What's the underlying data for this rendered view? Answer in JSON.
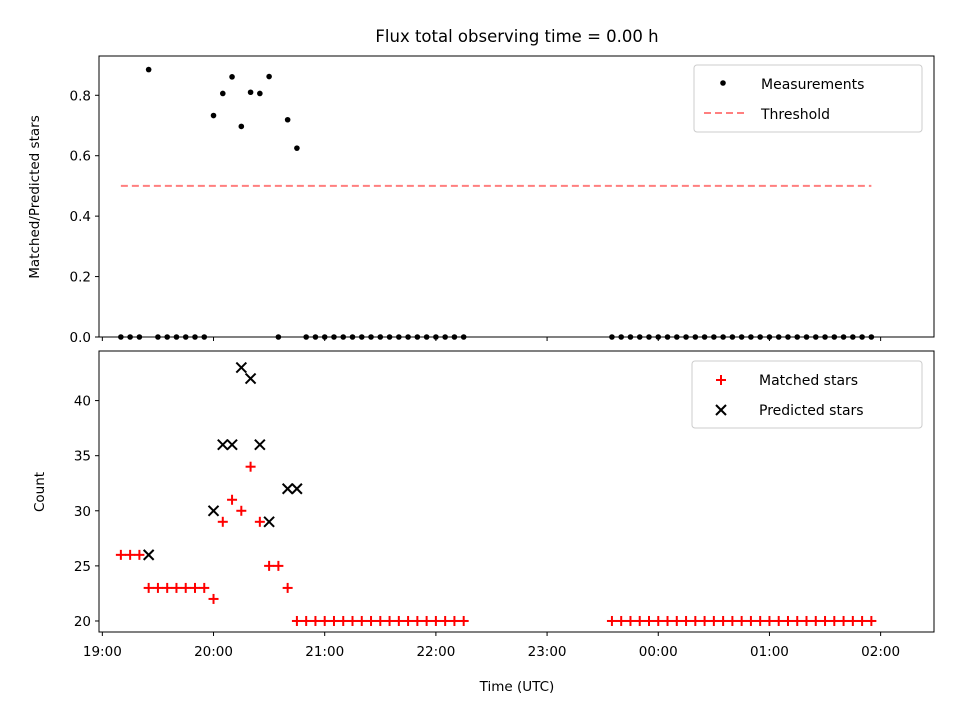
{
  "chart_data": [
    {
      "type": "scatter",
      "title": "Flux total observing time = 0.00 h",
      "ylabel": "Matched/Predicted stars",
      "ylim": [
        0.0,
        0.93
      ],
      "yticks": [
        "0.0",
        "0.2",
        "0.4",
        "0.6",
        "0.8"
      ],
      "xlim_hours": [
        18.97,
        26.48
      ],
      "legend": {
        "placement": "upper right",
        "entries": [
          {
            "name": "Measurements",
            "marker": "dot",
            "color": "#000000"
          },
          {
            "name": "Threshold",
            "marker": "dashed-line",
            "color": "#ff7f7f"
          }
        ]
      },
      "threshold": {
        "name": "Threshold",
        "value": 0.5,
        "x_start": "19:10",
        "x_end": "01:55",
        "color": "#ff7f7f"
      },
      "series": [
        {
          "name": "Measurements",
          "color": "#000000",
          "points": [
            [
              "19:10",
              0.0
            ],
            [
              "19:15",
              0.0
            ],
            [
              "19:20",
              0.0
            ],
            [
              "19:25",
              0.885
            ],
            [
              "19:30",
              0.0
            ],
            [
              "19:35",
              0.0
            ],
            [
              "19:40",
              0.0
            ],
            [
              "19:45",
              0.0
            ],
            [
              "19:50",
              0.0
            ],
            [
              "19:55",
              0.0
            ],
            [
              "20:00",
              0.733
            ],
            [
              "20:05",
              0.806
            ],
            [
              "20:10",
              0.861
            ],
            [
              "20:15",
              0.697
            ],
            [
              "20:20",
              0.81
            ],
            [
              "20:25",
              0.806
            ],
            [
              "20:30",
              0.862
            ],
            [
              "20:35",
              0.0
            ],
            [
              "20:40",
              0.719
            ],
            [
              "20:45",
              0.625
            ],
            [
              "20:50",
              0.0
            ],
            [
              "20:55",
              0.0
            ],
            [
              "21:00",
              0.0
            ],
            [
              "21:05",
              0.0
            ],
            [
              "21:10",
              0.0
            ],
            [
              "21:15",
              0.0
            ],
            [
              "21:20",
              0.0
            ],
            [
              "21:25",
              0.0
            ],
            [
              "21:30",
              0.0
            ],
            [
              "21:35",
              0.0
            ],
            [
              "21:40",
              0.0
            ],
            [
              "21:45",
              0.0
            ],
            [
              "21:50",
              0.0
            ],
            [
              "21:55",
              0.0
            ],
            [
              "22:00",
              0.0
            ],
            [
              "22:05",
              0.0
            ],
            [
              "22:10",
              0.0
            ],
            [
              "22:15",
              0.0
            ],
            [
              "23:35",
              0.0
            ],
            [
              "23:40",
              0.0
            ],
            [
              "23:45",
              0.0
            ],
            [
              "23:50",
              0.0
            ],
            [
              "23:55",
              0.0
            ],
            [
              "00:00",
              0.0
            ],
            [
              "00:05",
              0.0
            ],
            [
              "00:10",
              0.0
            ],
            [
              "00:15",
              0.0
            ],
            [
              "00:20",
              0.0
            ],
            [
              "00:25",
              0.0
            ],
            [
              "00:30",
              0.0
            ],
            [
              "00:35",
              0.0
            ],
            [
              "00:40",
              0.0
            ],
            [
              "00:45",
              0.0
            ],
            [
              "00:50",
              0.0
            ],
            [
              "00:55",
              0.0
            ],
            [
              "01:00",
              0.0
            ],
            [
              "01:05",
              0.0
            ],
            [
              "01:10",
              0.0
            ],
            [
              "01:15",
              0.0
            ],
            [
              "01:20",
              0.0
            ],
            [
              "01:25",
              0.0
            ],
            [
              "01:30",
              0.0
            ],
            [
              "01:35",
              0.0
            ],
            [
              "01:40",
              0.0
            ],
            [
              "01:45",
              0.0
            ],
            [
              "01:50",
              0.0
            ],
            [
              "01:55",
              0.0
            ]
          ]
        }
      ]
    },
    {
      "type": "scatter",
      "xlabel": "Time (UTC)",
      "ylabel": "Count",
      "ylim": [
        19,
        44.5
      ],
      "yticks": [
        "20",
        "25",
        "30",
        "35",
        "40"
      ],
      "xlim_hours": [
        18.97,
        26.48
      ],
      "xticks": [
        "19:00",
        "20:00",
        "21:00",
        "22:00",
        "23:00",
        "00:00",
        "01:00",
        "02:00"
      ],
      "legend": {
        "placement": "upper right",
        "entries": [
          {
            "name": "Matched stars",
            "marker": "plus",
            "color": "#ff0000"
          },
          {
            "name": "Predicted stars",
            "marker": "x",
            "color": "#000000"
          }
        ]
      },
      "series": [
        {
          "name": "Matched stars",
          "color": "#ff0000",
          "points": [
            [
              "19:10",
              26
            ],
            [
              "19:15",
              26
            ],
            [
              "19:20",
              26
            ],
            [
              "19:25",
              23
            ],
            [
              "19:30",
              23
            ],
            [
              "19:35",
              23
            ],
            [
              "19:40",
              23
            ],
            [
              "19:45",
              23
            ],
            [
              "19:50",
              23
            ],
            [
              "19:55",
              23
            ],
            [
              "20:00",
              22
            ],
            [
              "20:05",
              29
            ],
            [
              "20:10",
              31
            ],
            [
              "20:15",
              30
            ],
            [
              "20:20",
              34
            ],
            [
              "20:25",
              29
            ],
            [
              "20:30",
              25
            ],
            [
              "20:35",
              25
            ],
            [
              "20:40",
              23
            ],
            [
              "20:45",
              20
            ],
            [
              "20:50",
              20
            ],
            [
              "20:55",
              20
            ],
            [
              "21:00",
              20
            ],
            [
              "21:05",
              20
            ],
            [
              "21:10",
              20
            ],
            [
              "21:15",
              20
            ],
            [
              "21:20",
              20
            ],
            [
              "21:25",
              20
            ],
            [
              "21:30",
              20
            ],
            [
              "21:35",
              20
            ],
            [
              "21:40",
              20
            ],
            [
              "21:45",
              20
            ],
            [
              "21:50",
              20
            ],
            [
              "21:55",
              20
            ],
            [
              "22:00",
              20
            ],
            [
              "22:05",
              20
            ],
            [
              "22:10",
              20
            ],
            [
              "22:15",
              20
            ],
            [
              "23:35",
              20
            ],
            [
              "23:40",
              20
            ],
            [
              "23:45",
              20
            ],
            [
              "23:50",
              20
            ],
            [
              "23:55",
              20
            ],
            [
              "00:00",
              20
            ],
            [
              "00:05",
              20
            ],
            [
              "00:10",
              20
            ],
            [
              "00:15",
              20
            ],
            [
              "00:20",
              20
            ],
            [
              "00:25",
              20
            ],
            [
              "00:30",
              20
            ],
            [
              "00:35",
              20
            ],
            [
              "00:40",
              20
            ],
            [
              "00:45",
              20
            ],
            [
              "00:50",
              20
            ],
            [
              "00:55",
              20
            ],
            [
              "01:00",
              20
            ],
            [
              "01:05",
              20
            ],
            [
              "01:10",
              20
            ],
            [
              "01:15",
              20
            ],
            [
              "01:20",
              20
            ],
            [
              "01:25",
              20
            ],
            [
              "01:30",
              20
            ],
            [
              "01:35",
              20
            ],
            [
              "01:40",
              20
            ],
            [
              "01:45",
              20
            ],
            [
              "01:50",
              20
            ],
            [
              "01:55",
              20
            ]
          ]
        },
        {
          "name": "Predicted stars",
          "color": "#000000",
          "points": [
            [
              "19:25",
              26
            ],
            [
              "20:00",
              30
            ],
            [
              "20:05",
              36
            ],
            [
              "20:10",
              36
            ],
            [
              "20:15",
              43
            ],
            [
              "20:20",
              42
            ],
            [
              "20:25",
              36
            ],
            [
              "20:30",
              29
            ],
            [
              "20:40",
              32
            ],
            [
              "20:45",
              32
            ]
          ]
        }
      ]
    }
  ]
}
